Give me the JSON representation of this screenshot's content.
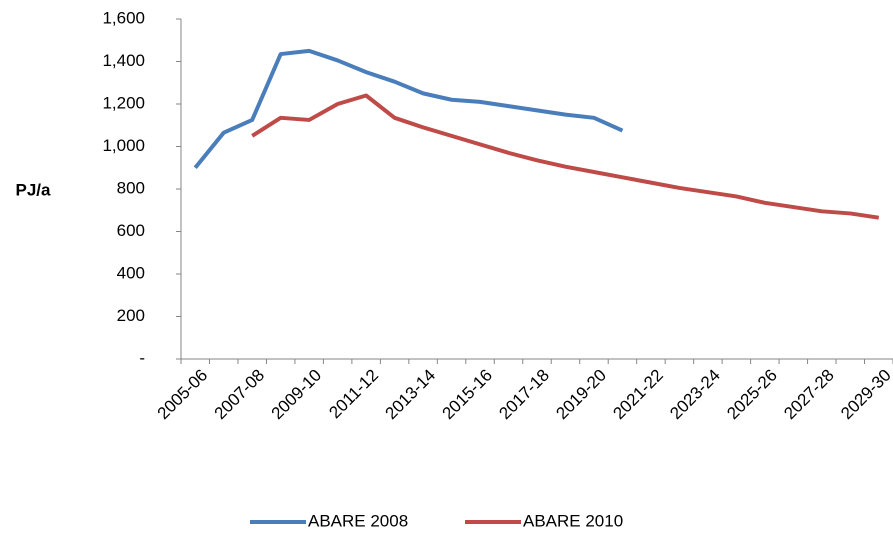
{
  "chart_data": {
    "type": "line",
    "y_label": "PJ/a",
    "categories": [
      "2005-06",
      null,
      "2007-08",
      null,
      "2009-10",
      null,
      "2011-12",
      null,
      "2013-14",
      null,
      "2015-16",
      null,
      "2017-18",
      null,
      "2019-20",
      null,
      "2021-22",
      null,
      "2023-24",
      null,
      "2025-26",
      null,
      "2027-28",
      null,
      "2029-30"
    ],
    "series": [
      {
        "name": "ABARE 2008",
        "color": "#4a7ebb",
        "values": [
          900,
          1065,
          1125,
          1435,
          1450,
          1405,
          1350,
          1305,
          1250,
          1220,
          1210,
          1190,
          1170,
          1150,
          1135,
          1075,
          null,
          null,
          null,
          null,
          null,
          null,
          null,
          null,
          null
        ]
      },
      {
        "name": "ABARE 2010",
        "color": "#be4b48",
        "values": [
          null,
          null,
          1050,
          1135,
          1125,
          1200,
          1240,
          1135,
          1090,
          1050,
          1010,
          970,
          935,
          905,
          880,
          855,
          830,
          805,
          785,
          765,
          735,
          715,
          695,
          685,
          665
        ]
      }
    ],
    "ylim": [
      0,
      1600
    ],
    "yticks": [
      {
        "value": 0,
        "label": "-"
      },
      200,
      400,
      600,
      800,
      {
        "value": 1000,
        "label": "1,000"
      },
      {
        "value": 1200,
        "label": "1,200"
      },
      {
        "value": 1400,
        "label": "1,400"
      },
      {
        "value": 1600,
        "label": "1,600"
      }
    ],
    "legend": "bottom"
  }
}
